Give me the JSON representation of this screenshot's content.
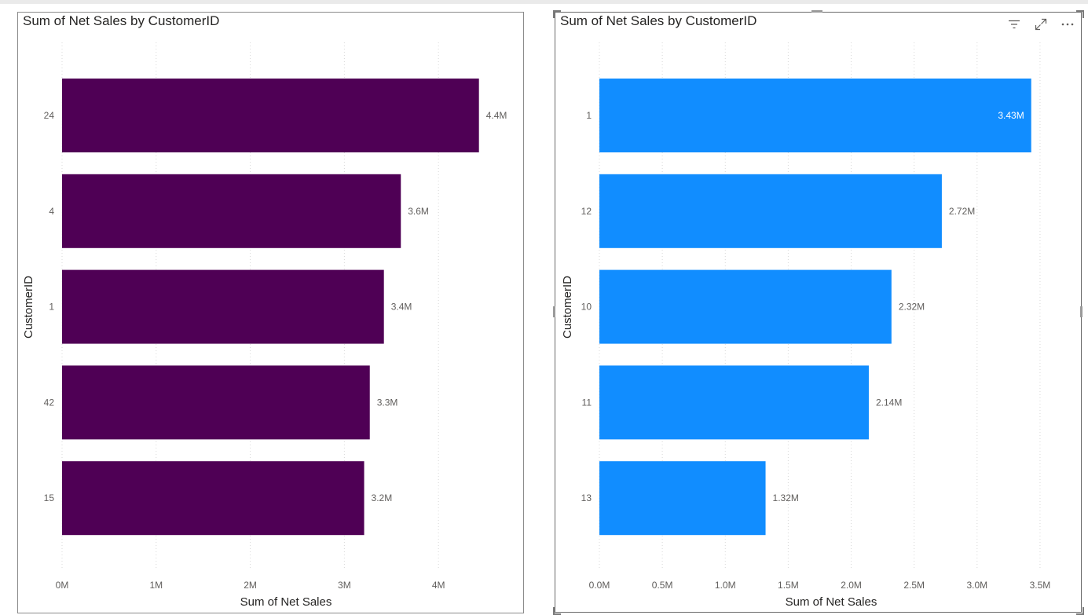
{
  "chart_data": [
    {
      "type": "bar",
      "orientation": "horizontal",
      "title": "Sum of Net Sales by CustomerID",
      "xlabel": "Sum of Net Sales",
      "ylabel": "CustomerID",
      "categories": [
        "24",
        "4",
        "1",
        "42",
        "15"
      ],
      "values": [
        4430000,
        3600000,
        3420000,
        3270000,
        3210000
      ],
      "data_labels": [
        "4.4M",
        "3.6M",
        "3.4M",
        "3.3M",
        "3.2M"
      ],
      "x_ticks": [
        "0M",
        "1M",
        "2M",
        "3M",
        "4M"
      ],
      "x_tick_values": [
        0,
        1000000,
        2000000,
        3000000,
        4000000
      ],
      "xlim": [
        0,
        4900000
      ],
      "bar_color": "#4f0055",
      "grid": "vertical-dotted",
      "label_color": "#605e5c"
    },
    {
      "type": "bar",
      "orientation": "horizontal",
      "title": "Sum of Net Sales by CustomerID",
      "xlabel": "Sum of Net Sales",
      "ylabel": "CustomerID",
      "categories": [
        "1",
        "12",
        "10",
        "11",
        "13"
      ],
      "values": [
        3430000,
        2720000,
        2320000,
        2140000,
        1320000
      ],
      "data_labels": [
        "3.43M",
        "2.72M",
        "2.32M",
        "2.14M",
        "1.32M"
      ],
      "x_ticks": [
        "0.0M",
        "0.5M",
        "1.0M",
        "1.5M",
        "2.0M",
        "2.5M",
        "3.0M",
        "3.5M"
      ],
      "x_tick_values": [
        0,
        500000,
        1000000,
        1500000,
        2000000,
        2500000,
        3000000,
        3500000
      ],
      "xlim": [
        0,
        3750000
      ],
      "bar_color": "#118dff",
      "grid": "vertical-dotted",
      "label_color": "#605e5c",
      "first_label_inside": true
    }
  ],
  "icons": {
    "filter": "filter-icon",
    "focus": "focus-mode-icon",
    "more": "more-options-icon"
  }
}
